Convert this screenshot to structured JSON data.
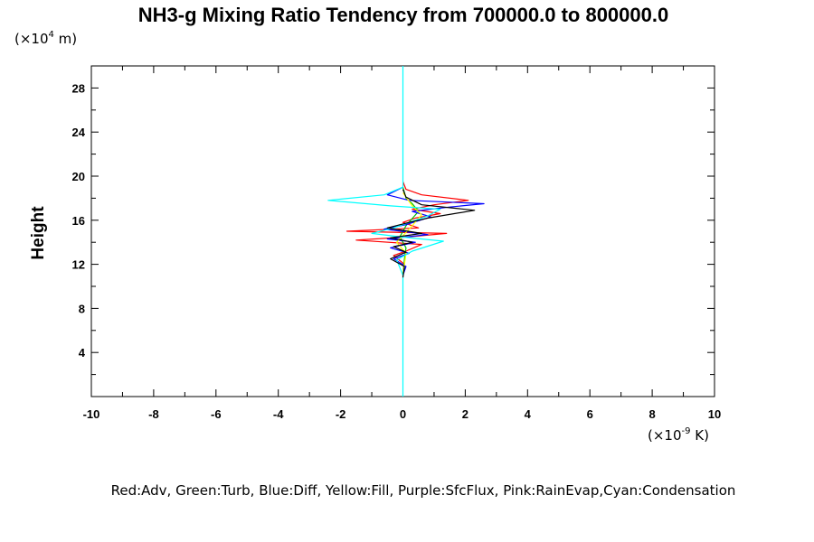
{
  "chart_data": {
    "type": "line",
    "title": "NH3-g Mixing Ratio Tendency from 700000.0 to 800000.0",
    "ylabel": "Height",
    "y_unit_prefix": "(×10",
    "y_unit_exp": "4",
    "y_unit_suffix": " m)",
    "x_unit_prefix": "(×10",
    "x_unit_exp": "-9",
    "x_unit_suffix": " K)",
    "xlim": [
      -10,
      10
    ],
    "ylim": [
      0,
      30
    ],
    "x_ticks": [
      -10,
      -8,
      -6,
      -4,
      -2,
      0,
      2,
      4,
      6,
      8,
      10
    ],
    "y_ticks": [
      4,
      8,
      12,
      16,
      20,
      24,
      28
    ],
    "legend_note": "Red:Adv, Green:Turb, Blue:Diff, Yellow:Fill, Purple:SfcFlux, Pink:RainEvap,Cyan:Condensation",
    "series": [
      {
        "name": "Adv",
        "color": "#ff0000",
        "points": [
          [
            0,
            11
          ],
          [
            0.05,
            12
          ],
          [
            -0.3,
            12.8
          ],
          [
            0.1,
            13.2
          ],
          [
            0.6,
            13.8
          ],
          [
            -1.5,
            14.2
          ],
          [
            0.2,
            14.5
          ],
          [
            1.4,
            14.8
          ],
          [
            -1.8,
            15.0
          ],
          [
            0.5,
            15.3
          ],
          [
            0,
            15.8
          ],
          [
            0.4,
            16.2
          ],
          [
            1.2,
            16.6
          ],
          [
            0.3,
            17.0
          ],
          [
            1.0,
            17.4
          ],
          [
            2.1,
            17.8
          ],
          [
            0.6,
            18.3
          ],
          [
            0.1,
            18.8
          ],
          [
            0,
            19.5
          ]
        ]
      },
      {
        "name": "Turb",
        "color": "#00c000",
        "points": [
          [
            0,
            11
          ],
          [
            0.05,
            12.5
          ],
          [
            0.1,
            13.5
          ],
          [
            -0.1,
            14.5
          ],
          [
            0.1,
            15.5
          ],
          [
            0.5,
            16.8
          ],
          [
            0.3,
            17.5
          ],
          [
            0.1,
            18.0
          ],
          [
            0,
            19
          ]
        ]
      },
      {
        "name": "Diff",
        "color": "#0000ff",
        "points": [
          [
            0,
            11
          ],
          [
            0.1,
            11.8
          ],
          [
            -0.3,
            12.5
          ],
          [
            0.2,
            13.0
          ],
          [
            -0.4,
            13.5
          ],
          [
            0.4,
            14.0
          ],
          [
            -0.5,
            14.3
          ],
          [
            0.8,
            14.7
          ],
          [
            -0.6,
            15.2
          ],
          [
            0.1,
            15.6
          ],
          [
            0.9,
            16.3
          ],
          [
            0.3,
            16.8
          ],
          [
            1.5,
            17.2
          ],
          [
            2.6,
            17.5
          ],
          [
            0.2,
            17.8
          ],
          [
            -0.5,
            18.3
          ],
          [
            0,
            19
          ]
        ]
      },
      {
        "name": "Fill",
        "color": "#ffff00",
        "points": [
          [
            0,
            11
          ],
          [
            0.1,
            13
          ],
          [
            -0.2,
            14
          ],
          [
            0.2,
            15.2
          ],
          [
            0.6,
            16.5
          ],
          [
            0.3,
            17.3
          ],
          [
            0,
            18.5
          ]
        ]
      },
      {
        "name": "Condensation",
        "color": "#00ffff",
        "points": [
          [
            0,
            0
          ],
          [
            0,
            11
          ],
          [
            -0.2,
            12.4
          ],
          [
            0.3,
            13.2
          ],
          [
            1.3,
            14.1
          ],
          [
            -0.1,
            14.5
          ],
          [
            -1.0,
            14.8
          ],
          [
            -0.3,
            15.3
          ],
          [
            0.2,
            15.8
          ],
          [
            0.8,
            16.4
          ],
          [
            1.2,
            17.0
          ],
          [
            -0.4,
            17.3
          ],
          [
            -2.4,
            17.8
          ],
          [
            -0.6,
            18.3
          ],
          [
            0,
            19
          ],
          [
            0,
            30
          ]
        ]
      },
      {
        "name": "",
        "color": "#000000",
        "points": [
          [
            0,
            10.8
          ],
          [
            0.05,
            11.8
          ],
          [
            -0.4,
            12.5
          ],
          [
            0.1,
            13.1
          ],
          [
            -0.3,
            13.6
          ],
          [
            0.3,
            14.0
          ],
          [
            -0.4,
            14.4
          ],
          [
            0.6,
            14.8
          ],
          [
            -0.5,
            15.3
          ],
          [
            0.2,
            15.8
          ],
          [
            0.8,
            16.2
          ],
          [
            2.3,
            16.9
          ],
          [
            0.6,
            17.4
          ],
          [
            0.1,
            18.1
          ],
          [
            0,
            18.8
          ]
        ]
      }
    ]
  }
}
